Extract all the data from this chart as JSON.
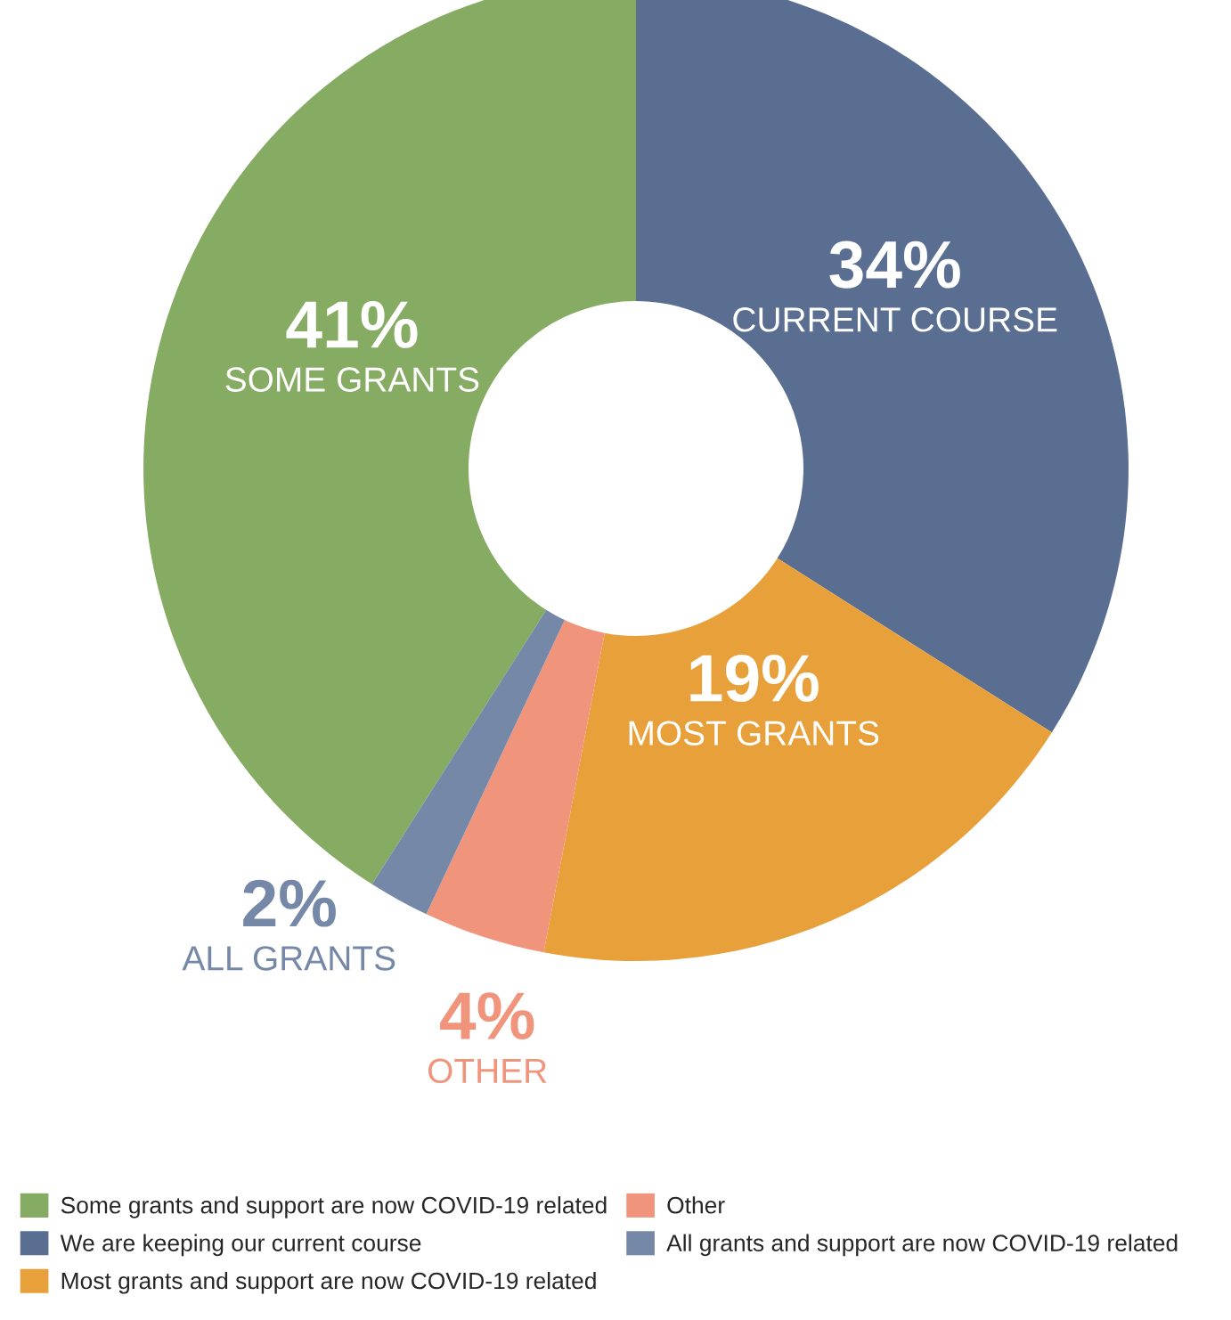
{
  "chart_data": {
    "type": "donut",
    "categories": [
      "Some grants and support are now COVID-19 related",
      "We are keeping our current course",
      "Most grants and support are now COVID-19 related",
      "Other",
      "All grants and support are now COVID-19 related"
    ],
    "values": [
      41,
      34,
      19,
      4,
      2
    ],
    "colors": [
      "#86ab63",
      "#5a6e91",
      "#e8a03a",
      "#f0947c",
      "#7688a8"
    ],
    "value_labels": [
      "41%",
      "34%",
      "19%",
      "4%",
      "2%"
    ],
    "annotations": [
      {
        "text": "SOME GRANTS",
        "x": "Some grants and support are now COVID-19 related"
      },
      {
        "text": "CURRENT COURSE",
        "x": "We are keeping our current course"
      },
      {
        "text": "MOST GRANTS",
        "x": "Most grants and support are now COVID-19 related"
      },
      {
        "text": "OTHER",
        "x": "Other"
      },
      {
        "text": "ALL GRANTS",
        "x": "All grants and support are now COVID-19 related"
      }
    ],
    "legend": "bottom"
  }
}
